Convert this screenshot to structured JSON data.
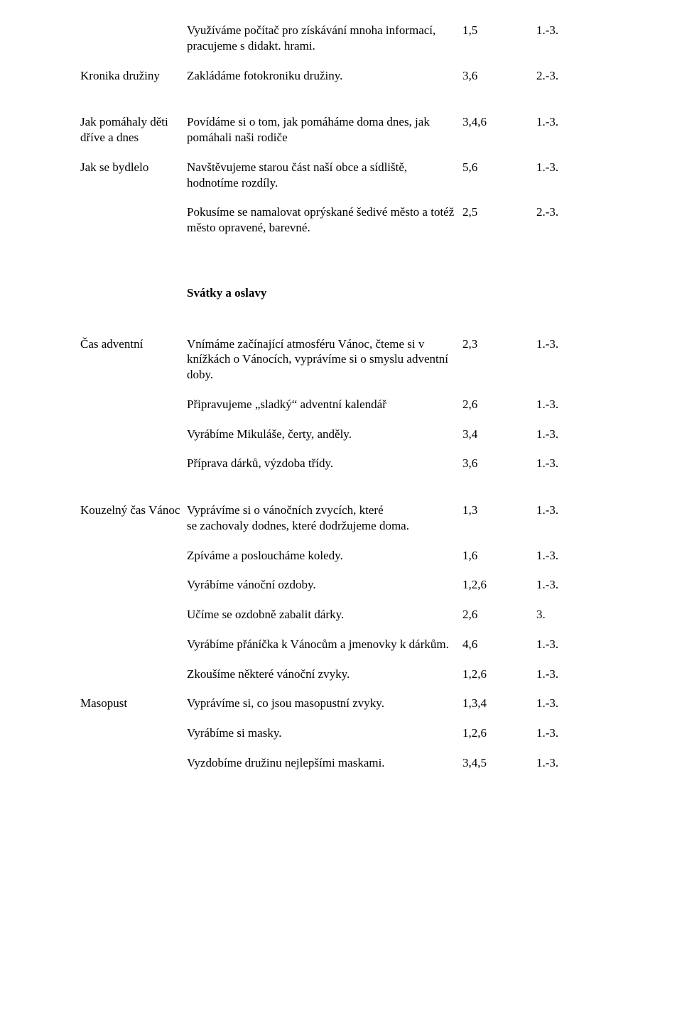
{
  "rows": [
    {
      "label": "",
      "desc": "Využíváme počítač pro získávání mnoha informací, pracujeme s didakt. hrami.",
      "code": "1,5",
      "age": "1.-3."
    },
    {
      "label": "Kronika družiny",
      "desc": "Zakládáme fotokroniku družiny.",
      "code": "3,6",
      "age": "2.-3."
    }
  ],
  "rows2": [
    {
      "label": "Jak pomáhaly děti dříve a dnes",
      "desc": "Povídáme si o tom, jak pomáháme doma dnes, jak pomáhali naši rodiče",
      "code": "3,4,6",
      "age": "1.-3."
    },
    {
      "label": "Jak se bydlelo",
      "desc": "Navštěvujeme starou část naší obce a sídliště, hodnotíme rozdíly.",
      "code": "5,6",
      "age": "1.-3."
    },
    {
      "label": "",
      "desc": "Pokusíme se namalovat oprýskané šedivé město a totéž město opravené, barevné.",
      "code": "2,5",
      "age": "2.-3."
    }
  ],
  "section1": "Svátky a oslavy",
  "rows3": [
    {
      "label": "Čas adventní",
      "desc": "Vnímáme začínající atmosféru Vánoc, čteme si v knížkách o Vánocích, vyprávíme si o smyslu adventní doby.",
      "code": "2,3",
      "age": "1.-3."
    },
    {
      "label": "",
      "desc": "Připravujeme „sladký“ adventní kalendář",
      "code": "2,6",
      "age": "1.-3."
    },
    {
      "label": "",
      "desc": "Vyrábíme Mikuláše, čerty, anděly.",
      "code": "3,4",
      "age": "1.-3."
    },
    {
      "label": "",
      "desc": "Příprava dárků, výzdoba třídy.",
      "code": "3,6",
      "age": "1.-3."
    }
  ],
  "rows4": [
    {
      "label": "Kouzelný čas Vánoc",
      "desc": "Vyprávíme si o vánočních zvycích, které\n se zachovaly dodnes, které dodržujeme doma.",
      "code": "1,3",
      "age": "1.-3."
    },
    {
      "label": "",
      "desc": "Zpíváme  a posloucháme koledy.",
      "code": "1,6",
      "age": "1.-3."
    },
    {
      "label": "",
      "desc": "Vyrábíme vánoční ozdoby.",
      "code": "1,2,6",
      "age": "1.-3."
    },
    {
      "label": "",
      "desc": "Učíme se ozdobně zabalit dárky.",
      "code": "2,6",
      "age": "3."
    },
    {
      "label": "",
      "desc": "Vyrábíme přáníčka k Vánocům a jmenovky k dárkům.",
      "code": "4,6",
      "age": "1.-3."
    },
    {
      "label": "",
      "desc": "Zkoušíme některé vánoční zvyky.",
      "code": "1,2,6",
      "age": "1.-3."
    },
    {
      "label": "Masopust",
      "desc": "Vyprávíme si, co jsou masopustní zvyky.",
      "code": "1,3,4",
      "age": "1.-3."
    },
    {
      "label": "",
      "desc": "Vyrábíme si masky.",
      "code": "1,2,6",
      "age": "1.-3."
    },
    {
      "label": "",
      "desc": "Vyzdobíme družinu nejlepšími maskami.",
      "code": "3,4,5",
      "age": "1.-3."
    }
  ]
}
